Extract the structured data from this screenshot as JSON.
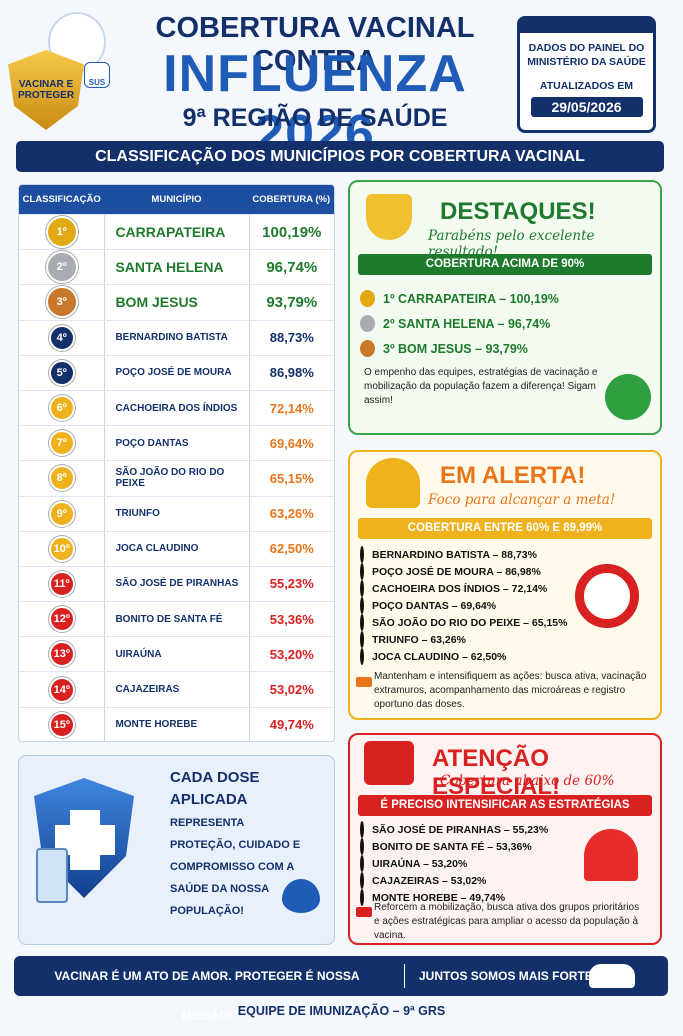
{
  "header": {
    "badge": "VACINAR E PROTEGER",
    "badge_sus": "SUS",
    "title_line1": "COBERTURA VACINAL CONTRA",
    "title_line2": "INFLUENZA 2026",
    "title_line3": "9ª REGIÃO DE SAÚDE",
    "source": "DADOS DO PAINEL DO MINISTÉRIO DA SAÚDE",
    "updated_label": "ATUALIZADOS EM",
    "updated_date": "29/05/2026"
  },
  "section_title": "CLASSIFICAÇÃO DOS MUNICÍPIOS POR COBERTURA VACINAL",
  "table": {
    "headers": [
      "CLASSIFICAÇÃO",
      "MUNICÍPIO",
      "COBERTURA (%)"
    ],
    "rows": [
      [
        "1º",
        "CARRAPATEIRA",
        "100,19%"
      ],
      [
        "2º",
        "SANTA HELENA",
        "96,74%"
      ],
      [
        "3º",
        "BOM JESUS",
        "93,79%"
      ],
      [
        "4º",
        "BERNARDINO BATISTA",
        "88,73%"
      ],
      [
        "5º",
        "POÇO JOSÉ DE MOURA",
        "86,98%"
      ],
      [
        "6º",
        "CACHOEIRA DOS ÍNDIOS",
        "72,14%"
      ],
      [
        "7º",
        "POÇO DANTAS",
        "69,64%"
      ],
      [
        "8º",
        "SÃO JOÃO DO RIO DO PEIXE",
        "65,15%"
      ],
      [
        "9º",
        "TRIUNFO",
        "63,26%"
      ],
      [
        "10º",
        "JOCA CLAUDINO",
        "62,50%"
      ],
      [
        "11º",
        "SÃO JOSÉ DE PIRANHAS",
        "55,23%"
      ],
      [
        "12º",
        "BONITO DE SANTA FÉ",
        "53,36%"
      ],
      [
        "13º",
        "UIRAÚNA",
        "53,20%"
      ],
      [
        "14º",
        "CAJAZEIRAS",
        "53,02%"
      ],
      [
        "15º",
        "MONTE HOREBE",
        "49,74%"
      ]
    ]
  },
  "highlights": {
    "title": "DESTAQUES!",
    "subtitle": "Parabéns pelo excelente resultado!",
    "band": "COBERTURA ACIMA DE 90%",
    "items": [
      "1º CARRAPATEIRA – 100,19%",
      "2º SANTA HELENA – 96,74%",
      "3º BOM JESUS – 93,79%"
    ],
    "note": "O empenho das equipes, estratégias de vacinação e mobilização da população fazem a diferença! Sigam assim!"
  },
  "alert": {
    "title": "EM ALERTA!",
    "subtitle": "Foco para alcançar a meta!",
    "band": "COBERTURA ENTRE 60% E 89,99%",
    "items": [
      "BERNARDINO BATISTA – 88,73%",
      "POÇO JOSÉ DE MOURA – 86,98%",
      "CACHOEIRA DOS ÍNDIOS – 72,14%",
      "POÇO DANTAS – 69,64%",
      "SÃO JOÃO DO RIO DO PEIXE – 65,15%",
      "TRIUNFO – 63,26%",
      "JOCA CLAUDINO – 62,50%"
    ],
    "note": "Mantenham e intensifiquem as ações: busca ativa, vacinação extramuros, acompanhamento das microáreas e registro oportuno das doses."
  },
  "attention": {
    "title": "ATENÇÃO ESPECIAL!",
    "subtitle": "Cobertura abaixo de 60%",
    "band": "É PRECISO INTENSIFICAR AS ESTRATÉGIAS",
    "items": [
      "SÃO JOSÉ DE PIRANHAS – 55,23%",
      "BONITO DE SANTA FÉ – 53,36%",
      "UIRAÚNA – 53,20%",
      "CAJAZEIRAS – 53,02%",
      "MONTE HOREBE – 49,74%"
    ],
    "note": "Reforcem a mobilização, busca ativa dos grupos prioritários e ações estratégicas para ampliar o acesso da população à vacina."
  },
  "dose": {
    "title": "CADA DOSE APLICADA",
    "text": "REPRESENTA PROTEÇÃO, CUIDADO E COMPROMISSO COM A SAÚDE DA NOSSA POPULAÇÃO!"
  },
  "footer": {
    "motto": "VACINAR É UM ATO DE AMOR. PROTEGER É NOSSA MISSÃO!",
    "together": "JUNTOS SOMOS MAIS FORTES!",
    "team": "EQUIPE DE IMUNIZAÇÃO – 9ª GRS"
  }
}
